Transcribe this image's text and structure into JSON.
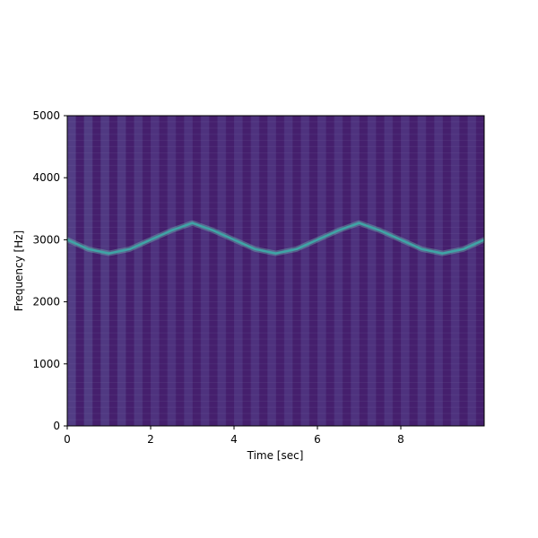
{
  "chart_data": {
    "type": "heatmap",
    "title": "",
    "xlabel": "Time [sec]",
    "ylabel": "Frequency [Hz]",
    "xlim": [
      0,
      10
    ],
    "ylim": [
      0,
      5000
    ],
    "x_ticks": [
      0,
      2,
      4,
      6,
      8
    ],
    "y_ticks": [
      0,
      1000,
      2000,
      3000,
      4000,
      5000
    ],
    "x_tick_labels": [
      "0",
      "2",
      "4",
      "6",
      "8"
    ],
    "y_tick_labels": [
      "0",
      "1000",
      "2000",
      "3000",
      "4000",
      "5000"
    ],
    "colormap": "viridis",
    "background_color": "#482474",
    "trace_color": "#3fa5a6",
    "grid": false,
    "series": [
      {
        "x": [
          0,
          0.5,
          1,
          1.5,
          2,
          2.5,
          3,
          3.5,
          4,
          4.5,
          5,
          5.5,
          6,
          6.5,
          7,
          7.5,
          8,
          8.5,
          9,
          9.5,
          10
        ],
        "values": [
          3000,
          2850,
          2780,
          2850,
          3000,
          3150,
          3270,
          3150,
          3000,
          2850,
          2780,
          2850,
          3000,
          3150,
          3270,
          3150,
          3000,
          2850,
          2780,
          2850,
          3000
        ]
      }
    ]
  }
}
